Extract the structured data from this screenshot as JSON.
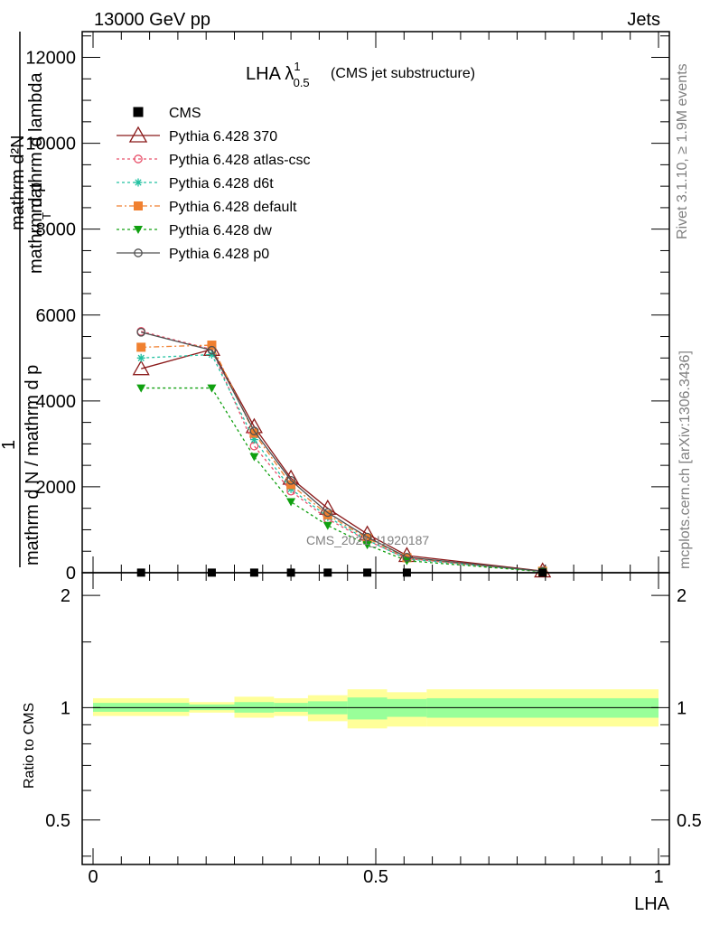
{
  "header": {
    "left": "13000 GeV pp",
    "right": "Jets"
  },
  "side": {
    "rivet": "Rivet 3.1.10, ≥ 1.9M events",
    "mcplots": "mcplots.cern.ch [arXiv:1306.3436]"
  },
  "chart_data": [
    {
      "type": "line",
      "title": "LHA λ",
      "title_sup": "1",
      "title_sub": "0.5",
      "subtitle": "(CMS jet substructure)",
      "watermark": "CMS_2021_I1920187",
      "ylabel_num": "1",
      "ylabel_den_line1": "mathrm d N / mathrm d p",
      "ylabel_den_line2": "mathrm d p",
      "ylabel_upper": "mathrm d²N",
      "ylabel_upper2": "mathrm d p",
      "ylabel_upper3": "mathrm d lambda",
      "ylabel_sub": "T",
      "xlim": [
        0,
        1
      ],
      "ylim": [
        0,
        12600
      ],
      "yticks": [
        0,
        2000,
        4000,
        6000,
        8000,
        10000,
        12000
      ],
      "yticklabels": [
        "0",
        "2000",
        "4000",
        "6000",
        "8000",
        "10000",
        "12000"
      ],
      "x": [
        0.085,
        0.21,
        0.285,
        0.35,
        0.415,
        0.485,
        0.555,
        0.795
      ],
      "series": [
        {
          "name": "CMS",
          "color": "#000000",
          "marker": "square",
          "dash": "none",
          "values": [
            2,
            2,
            2,
            2,
            2,
            2,
            2,
            1
          ]
        },
        {
          "name": "Pythia 6.428 370",
          "color": "#8b1a1a",
          "marker": "triangle-open",
          "dash": "none",
          "values": [
            4750,
            5200,
            3400,
            2200,
            1500,
            900,
            400,
            40
          ]
        },
        {
          "name": "Pythia 6.428 atlas-csc",
          "color": "#e8506a",
          "marker": "circle-open",
          "dash": "3,3",
          "values": [
            5620,
            5200,
            2950,
            1900,
            1250,
            750,
            330,
            30
          ]
        },
        {
          "name": "Pythia 6.428 d6t",
          "color": "#20c0a0",
          "marker": "star",
          "dash": "3,3",
          "values": [
            5000,
            5080,
            3100,
            1950,
            1300,
            760,
            320,
            30
          ]
        },
        {
          "name": "Pythia 6.428 default",
          "color": "#f08030",
          "marker": "square",
          "dash": "6,3,2,3",
          "values": [
            5250,
            5300,
            3250,
            2050,
            1350,
            800,
            350,
            35
          ]
        },
        {
          "name": "Pythia 6.428 dw",
          "color": "#10a010",
          "marker": "triangle-down",
          "dash": "3,3",
          "values": [
            4300,
            4300,
            2700,
            1650,
            1100,
            650,
            280,
            25
          ]
        },
        {
          "name": "Pythia 6.428 p0",
          "color": "#505050",
          "marker": "circle-open",
          "dash": "none",
          "values": [
            5600,
            5180,
            3300,
            2150,
            1400,
            830,
            360,
            35
          ]
        }
      ]
    },
    {
      "type": "area",
      "ylabel": "Ratio to CMS",
      "xlabel": "LHA",
      "xlim": [
        0,
        1
      ],
      "ylim": [
        0.38,
        2.3
      ],
      "xticks": [
        0,
        0.5,
        1
      ],
      "xticklabels": [
        "0",
        "0.5",
        "1"
      ],
      "yticks": [
        0.5,
        1,
        2
      ],
      "yticklabels": [
        "0.5",
        "1",
        "2"
      ],
      "bins": [
        0,
        0.17,
        0.25,
        0.32,
        0.38,
        0.45,
        0.52,
        0.59,
        1.0
      ],
      "yellow_band": [
        [
          0.95,
          1.06
        ],
        [
          0.97,
          1.035
        ],
        [
          0.94,
          1.07
        ],
        [
          0.95,
          1.06
        ],
        [
          0.92,
          1.08
        ],
        [
          0.88,
          1.12
        ],
        [
          0.89,
          1.1
        ],
        [
          0.89,
          1.12
        ]
      ],
      "green_band": [
        [
          0.975,
          1.03
        ],
        [
          0.985,
          1.02
        ],
        [
          0.97,
          1.035
        ],
        [
          0.975,
          1.03
        ],
        [
          0.96,
          1.04
        ],
        [
          0.93,
          1.065
        ],
        [
          0.945,
          1.055
        ],
        [
          0.94,
          1.06
        ]
      ],
      "reference_line": 1,
      "colors": {
        "yellow": "#ffff99",
        "green": "#99ff99"
      }
    }
  ]
}
